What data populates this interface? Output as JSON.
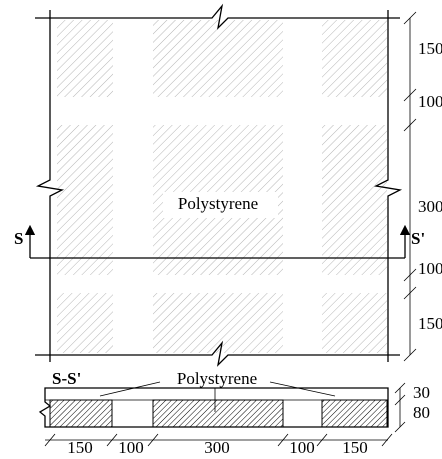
{
  "plan": {
    "label": "Polystyrene",
    "section_marks": [
      "S",
      "S'"
    ],
    "dimensions": [
      150,
      100,
      300,
      100,
      150
    ]
  },
  "section": {
    "title": "S-S'",
    "label": "Polystyrene",
    "thickness_dimensions": [
      30,
      80
    ],
    "width_dimensions": [
      150,
      100,
      300,
      100,
      150
    ]
  }
}
